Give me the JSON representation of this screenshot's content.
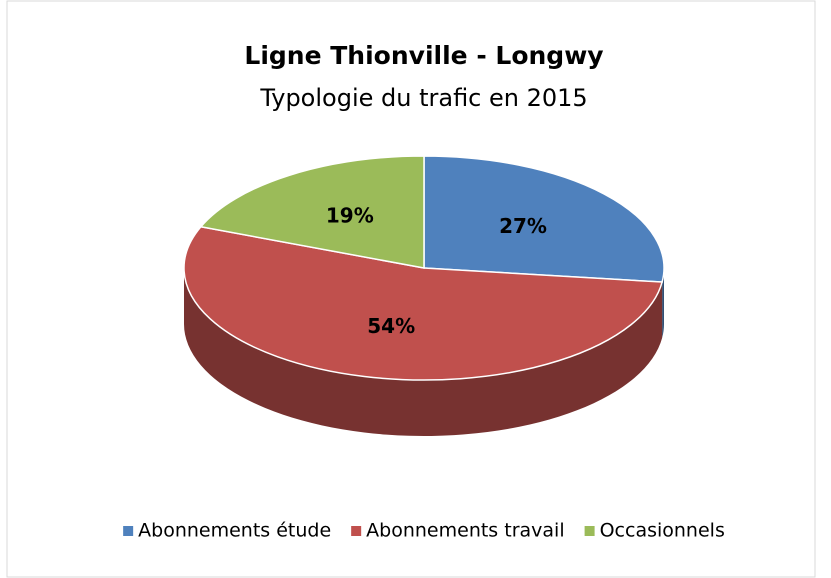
{
  "chart_data": {
    "type": "pie",
    "title": "Ligne Thionville - Longwy",
    "subtitle": "Typologie du trafic en 2015",
    "categories": [
      "Abonnements étude",
      "Abonnements travail",
      "Occasionnels"
    ],
    "values": [
      27,
      54,
      19
    ],
    "value_labels": [
      "27%",
      "54%",
      "19%"
    ],
    "colors": [
      "#4f81bd",
      "#c0504d",
      "#9bbb59"
    ],
    "legend": "bottom"
  }
}
